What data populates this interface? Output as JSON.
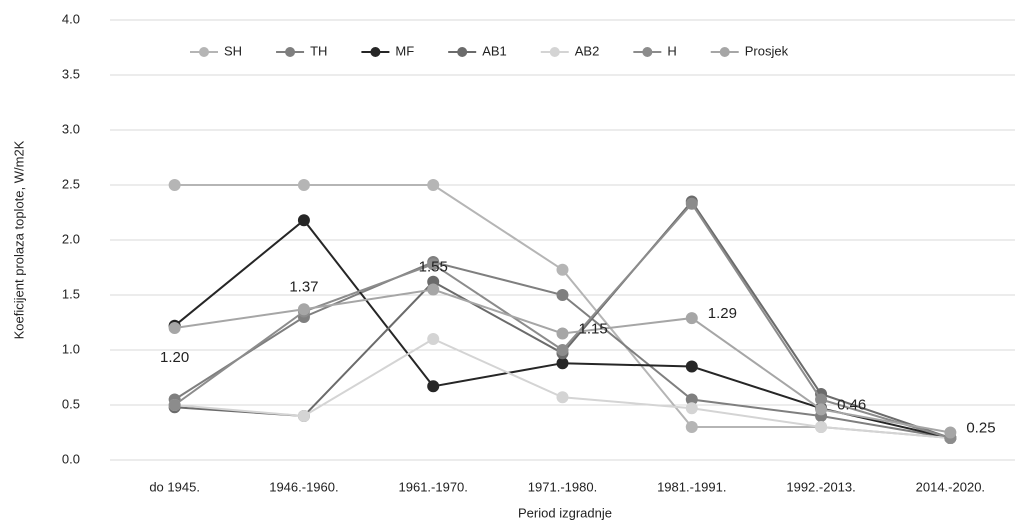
{
  "chart_data": {
    "type": "line",
    "x_label": "Period izgradnje",
    "y_label": "Koeficijent prolaza toplote, W/m2K",
    "categories": [
      "do 1945.",
      "1946.-1960.",
      "1961.-1970.",
      "1971.-1980.",
      "1981.-1991.",
      "1992.-2013.",
      "2014.-2020."
    ],
    "ylim": [
      0,
      4
    ],
    "yticks": [
      {
        "value": 0,
        "label": "0.0"
      },
      {
        "value": 0.5,
        "label": "0.5"
      },
      {
        "value": 1,
        "label": "1.0"
      },
      {
        "value": 1.5,
        "label": "1.5"
      },
      {
        "value": 2,
        "label": "2.0"
      },
      {
        "value": 2.5,
        "label": "2.5"
      },
      {
        "value": 3,
        "label": "3.0"
      },
      {
        "value": 3.5,
        "label": "3.5"
      },
      {
        "value": 4,
        "label": "4.0"
      }
    ],
    "grid": true,
    "legend": "top",
    "series": [
      {
        "name": "SH",
        "color": "#b5b5b5",
        "values": [
          2.5,
          2.5,
          2.5,
          1.73,
          0.3,
          0.3,
          0.2
        ]
      },
      {
        "name": "TH",
        "color": "#7f7f7f",
        "values": [
          0.55,
          1.3,
          1.8,
          1.5,
          0.55,
          0.4,
          0.2
        ]
      },
      {
        "name": "MF",
        "color": "#262626",
        "values": [
          1.22,
          2.18,
          0.67,
          0.88,
          0.85,
          0.47,
          0.2
        ]
      },
      {
        "name": "AB1",
        "color": "#6b6b6b",
        "values": [
          0.48,
          0.4,
          1.62,
          0.97,
          2.35,
          0.6,
          0.2
        ]
      },
      {
        "name": "AB2",
        "color": "#d4d4d4",
        "values": [
          0.5,
          0.4,
          1.1,
          0.57,
          0.47,
          0.3,
          0.2
        ]
      },
      {
        "name": "H",
        "color": "#8c8c8c",
        "values": [
          0.5,
          1.35,
          1.78,
          1.0,
          2.33,
          0.55,
          0.2
        ]
      },
      {
        "name": "Prosjek",
        "color": "#a6a6a6",
        "values": [
          1.2,
          1.37,
          1.55,
          1.15,
          1.29,
          0.46,
          0.25
        ],
        "value_labels": [
          "1.20",
          "1.37",
          "1.55",
          "1.15",
          "1.29",
          "0.46",
          "0.25"
        ]
      }
    ]
  }
}
